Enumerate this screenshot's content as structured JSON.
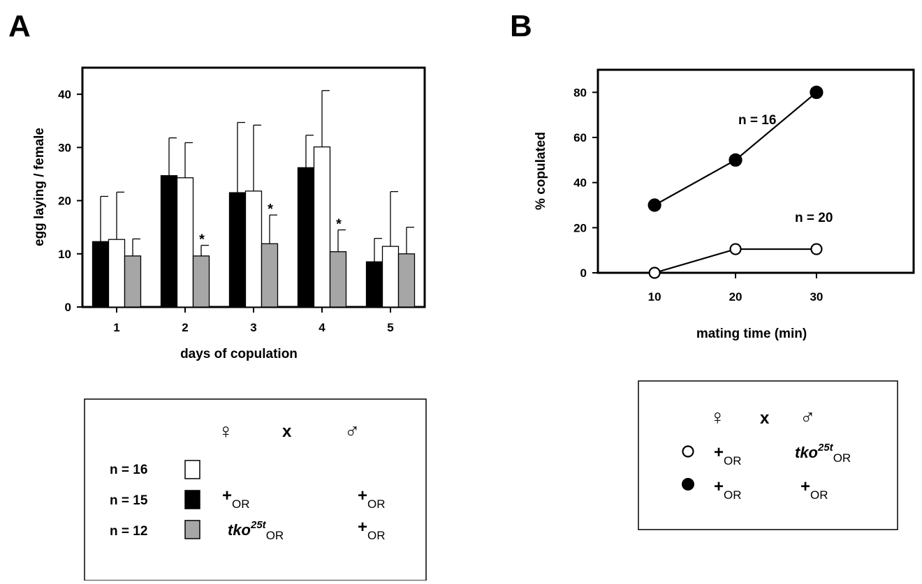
{
  "panels": {
    "a": "A",
    "b": "B"
  },
  "chart_data": [
    {
      "type": "bar",
      "xlabel": "days of copulation",
      "ylabel": "egg laying / female",
      "ylim": [
        0,
        45
      ],
      "yticks": [
        0,
        10,
        20,
        30,
        40
      ],
      "categories": [
        "1",
        "2",
        "3",
        "4",
        "5"
      ],
      "series": [
        {
          "fill": "#000000",
          "values": [
            12.3,
            24.7,
            21.5,
            26.2,
            8.5
          ],
          "errors": [
            8.5,
            7.1,
            13.2,
            6.1,
            4.4
          ]
        },
        {
          "fill": "#ffffff",
          "values": [
            12.7,
            24.3,
            21.8,
            30.1,
            11.4
          ],
          "errors": [
            8.9,
            6.6,
            12.4,
            10.6,
            10.3
          ]
        },
        {
          "fill": "#a6a6a6",
          "values": [
            9.6,
            9.6,
            11.9,
            10.4,
            10.0
          ],
          "errors": [
            3.2,
            2.0,
            5.4,
            4.1,
            5.0
          ]
        }
      ],
      "significance": [
        {
          "category": "2",
          "series": 2,
          "label": "*"
        },
        {
          "category": "3",
          "series": 2,
          "label": "*"
        },
        {
          "category": "4",
          "series": 2,
          "label": "*"
        }
      ],
      "grid": false
    },
    {
      "type": "line",
      "xlabel": "mating time (min)",
      "ylabel": "% copulated",
      "xlim": [
        3,
        42
      ],
      "ylim": [
        0,
        90
      ],
      "xticks": [
        10,
        20,
        30
      ],
      "yticks": [
        0,
        20,
        40,
        60,
        80
      ],
      "x": [
        10,
        20,
        30
      ],
      "series": [
        {
          "marker": "filled-circle",
          "values": [
            30,
            50,
            80
          ]
        },
        {
          "marker": "open-circle",
          "values": [
            0,
            10.5,
            10.5
          ]
        }
      ],
      "annotations": [
        "n = 16",
        "n = 20"
      ],
      "grid": false
    }
  ],
  "legend_a": {
    "female_symbol": "♀",
    "cross": "x",
    "male_symbol": "♂",
    "rows": [
      {
        "n": "n = 16",
        "swatch": "#ffffff",
        "female": "",
        "male": ""
      },
      {
        "n": "n = 15",
        "swatch": "#000000",
        "female": "+",
        "female_sub": "OR",
        "male": "+",
        "male_sub": "OR"
      },
      {
        "n": "n = 12",
        "swatch": "#a6a6a6",
        "female_geno": "tko",
        "female_sup": "25t",
        "female_sub": "OR",
        "male": "+",
        "male_sub": "OR"
      }
    ]
  },
  "legend_b": {
    "female_symbol": "♀",
    "cross": "x",
    "male_symbol": "♂",
    "rows": [
      {
        "marker": "open-circle",
        "female": "+",
        "female_sub": "OR",
        "male_geno": "tko",
        "male_sup": "25t",
        "male_sub": "OR"
      },
      {
        "marker": "filled-circle",
        "female": "+",
        "female_sub": "OR",
        "male": "+",
        "male_sub": "OR"
      }
    ]
  }
}
